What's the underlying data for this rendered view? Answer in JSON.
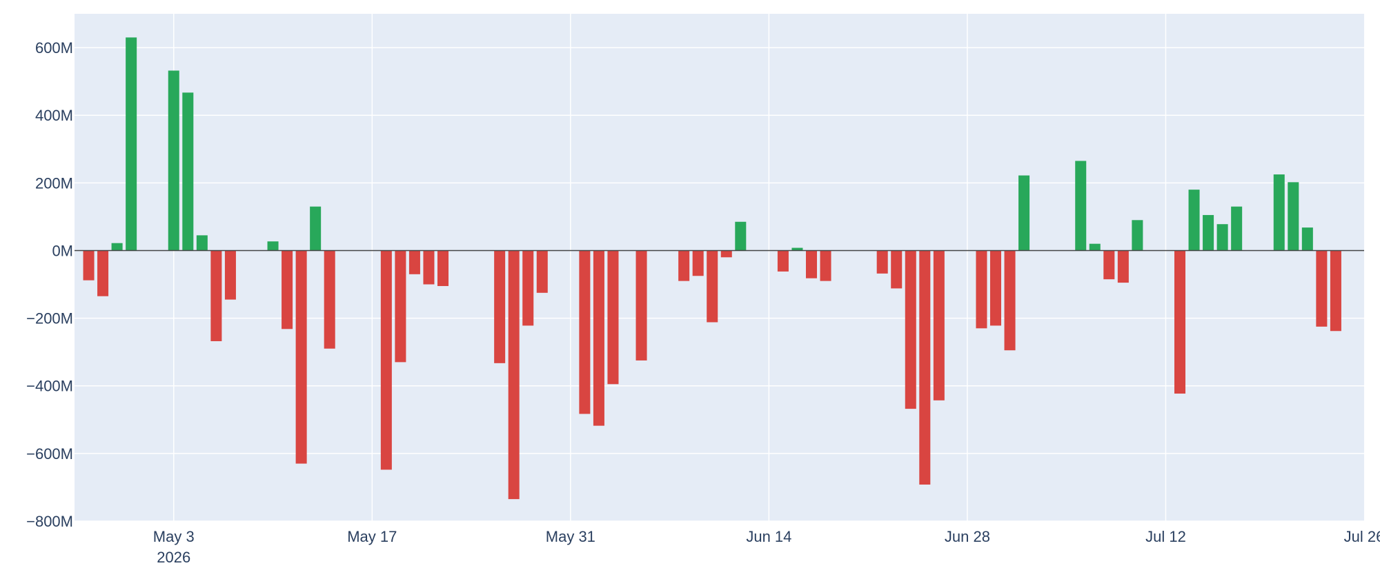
{
  "chart_data": {
    "type": "bar",
    "title": "",
    "xlabel": "",
    "ylabel": "",
    "x_axis": "date",
    "xlim": [
      "2026-04-26",
      "2026-07-26"
    ],
    "ylim": [
      -800000000,
      700000000
    ],
    "grid": true,
    "legend": "none",
    "colors": {
      "positive": "#28a85a",
      "negative": "#d94541",
      "plot_bg": "#e5ecf6",
      "zero_line": "#444444"
    },
    "x_ticks": [
      {
        "date": "2026-05-03",
        "label": "May 3",
        "sublabel": "2026"
      },
      {
        "date": "2026-05-17",
        "label": "May 17"
      },
      {
        "date": "2026-05-31",
        "label": "May 31"
      },
      {
        "date": "2026-06-14",
        "label": "Jun 14"
      },
      {
        "date": "2026-06-28",
        "label": "Jun 28"
      },
      {
        "date": "2026-07-12",
        "label": "Jul 12"
      },
      {
        "date": "2026-07-26",
        "label": "Jul 26"
      }
    ],
    "y_ticks": [
      {
        "value": 600000000,
        "label": "600M"
      },
      {
        "value": 400000000,
        "label": "400M"
      },
      {
        "value": 200000000,
        "label": "200M"
      },
      {
        "value": 0,
        "label": "0M"
      },
      {
        "value": -200000000,
        "label": "−200M"
      },
      {
        "value": -400000000,
        "label": "−400M"
      },
      {
        "value": -600000000,
        "label": "−600M"
      },
      {
        "value": -800000000,
        "label": "−800M"
      }
    ],
    "x": [
      "2026-04-27",
      "2026-04-28",
      "2026-04-29",
      "2026-04-30",
      "2026-05-03",
      "2026-05-04",
      "2026-05-05",
      "2026-05-06",
      "2026-05-07",
      "2026-05-10",
      "2026-05-11",
      "2026-05-12",
      "2026-05-13",
      "2026-05-14",
      "2026-05-18",
      "2026-05-19",
      "2026-05-20",
      "2026-05-21",
      "2026-05-22",
      "2026-05-26",
      "2026-05-27",
      "2026-05-28",
      "2026-05-29",
      "2026-06-01",
      "2026-06-02",
      "2026-06-03",
      "2026-06-05",
      "2026-06-08",
      "2026-06-09",
      "2026-06-10",
      "2026-06-11",
      "2026-06-12",
      "2026-06-15",
      "2026-06-16",
      "2026-06-17",
      "2026-06-18",
      "2026-06-22",
      "2026-06-23",
      "2026-06-24",
      "2026-06-25",
      "2026-06-26",
      "2026-06-29",
      "2026-06-30",
      "2026-07-01",
      "2026-07-02",
      "2026-07-06",
      "2026-07-07",
      "2026-07-08",
      "2026-07-09",
      "2026-07-10",
      "2026-07-13",
      "2026-07-14",
      "2026-07-15",
      "2026-07-16",
      "2026-07-17",
      "2026-07-20",
      "2026-07-21",
      "2026-07-22",
      "2026-07-23",
      "2026-07-24"
    ],
    "values": [
      -88000000,
      -135000000,
      22000000,
      630000000,
      532000000,
      467000000,
      45000000,
      -268000000,
      -145000000,
      27000000,
      -232000000,
      -630000000,
      130000000,
      -290000000,
      -648000000,
      -330000000,
      -70000000,
      -100000000,
      -105000000,
      -333000000,
      -735000000,
      -222000000,
      -125000000,
      -483000000,
      -518000000,
      -395000000,
      -325000000,
      -90000000,
      -75000000,
      -212000000,
      -20000000,
      85000000,
      -62000000,
      8000000,
      -82000000,
      -90000000,
      -68000000,
      -112000000,
      -468000000,
      -692000000,
      -443000000,
      -230000000,
      -222000000,
      -295000000,
      222000000,
      265000000,
      20000000,
      -85000000,
      -95000000,
      90000000,
      -423000000,
      180000000,
      105000000,
      78000000,
      130000000,
      225000000,
      202000000,
      68000000,
      -225000000,
      -238000000
    ]
  }
}
